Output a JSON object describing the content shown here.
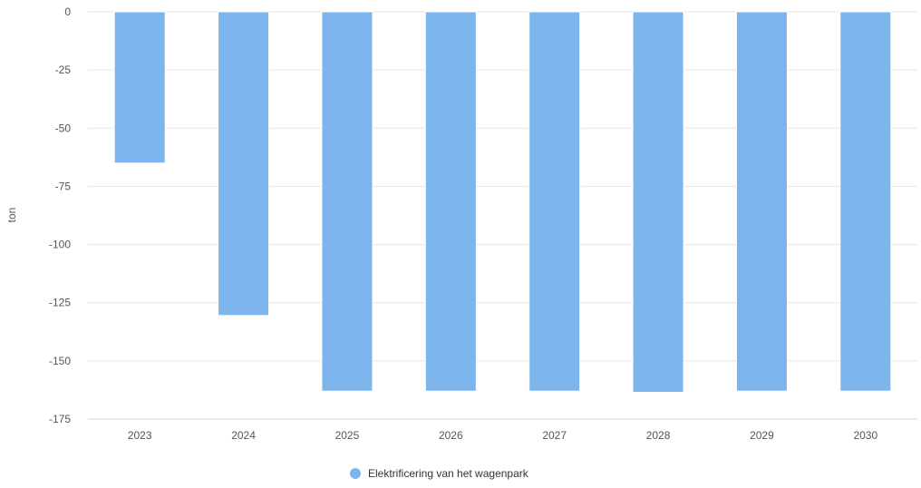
{
  "chart_data": {
    "type": "bar",
    "title": "",
    "xlabel": "",
    "ylabel": "ton",
    "categories": [
      "2023",
      "2024",
      "2025",
      "2026",
      "2027",
      "2028",
      "2029",
      "2030"
    ],
    "series": [
      {
        "name": "Elektrificering van het wagenpark",
        "color": "#7cb5ec",
        "values": [
          -65,
          -130.5,
          -163,
          -163,
          -163,
          -163.5,
          -163,
          -163
        ]
      }
    ],
    "ylim": [
      -175,
      0
    ],
    "yticks": [
      0,
      -25,
      -50,
      -75,
      -100,
      -125,
      -150,
      -175
    ],
    "ytick_labels": [
      "0",
      "-25",
      "-50",
      "-75",
      "-100",
      "-125",
      "-150",
      "-175"
    ],
    "grid": true,
    "legend": "bottom-center"
  }
}
